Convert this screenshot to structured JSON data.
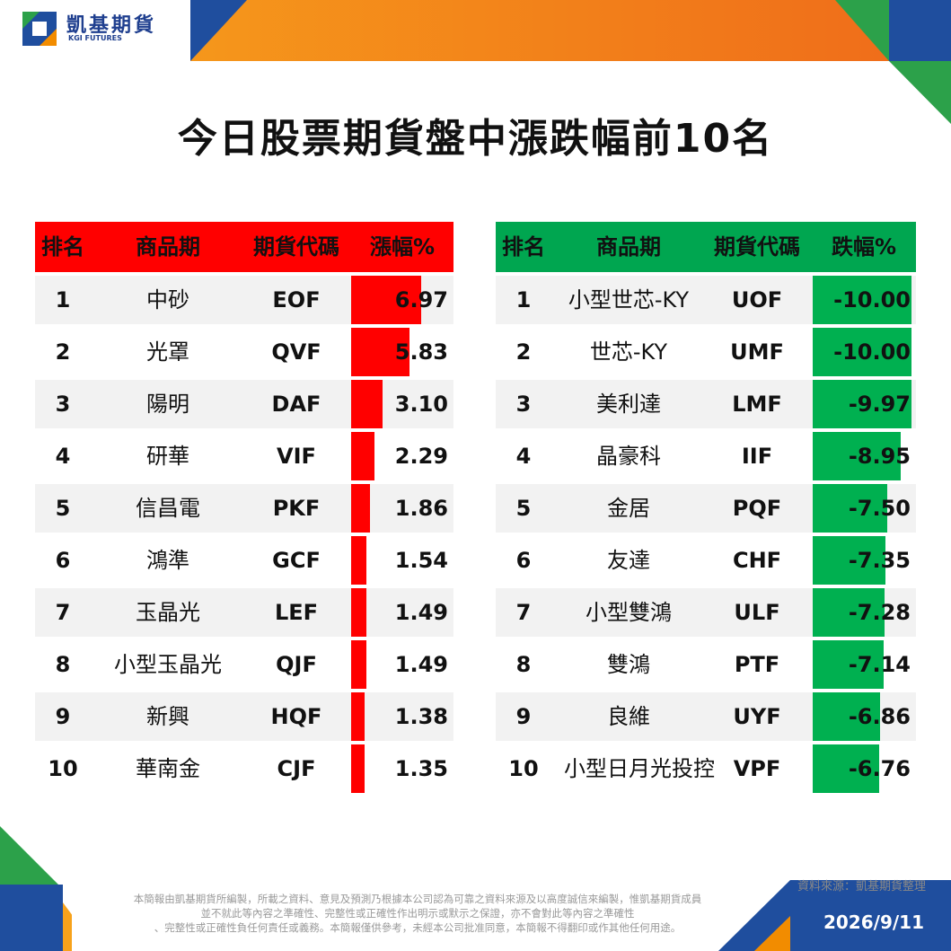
{
  "brand": {
    "name_cn": "凱基期貨",
    "name_en": "KGI FUTURES"
  },
  "title": "今日股票期貨盤中漲跌幅前10名",
  "colors": {
    "gain": "#ff0000",
    "loss": "#00b050",
    "brand_blue": "#1f3f8f",
    "brand_orange": "#f28c00"
  },
  "gainers": {
    "headers": [
      "排名",
      "商品期",
      "期貨代碼",
      "漲幅%"
    ],
    "rows": [
      {
        "rank": "1",
        "name": "中砂",
        "code": "EOF",
        "value": "6.97"
      },
      {
        "rank": "2",
        "name": "光罩",
        "code": "QVF",
        "value": "5.83"
      },
      {
        "rank": "3",
        "name": "陽明",
        "code": "DAF",
        "value": "3.10"
      },
      {
        "rank": "4",
        "name": "研華",
        "code": "VIF",
        "value": "2.29"
      },
      {
        "rank": "5",
        "name": "信昌電",
        "code": "PKF",
        "value": "1.86"
      },
      {
        "rank": "6",
        "name": "鴻準",
        "code": "GCF",
        "value": "1.54"
      },
      {
        "rank": "7",
        "name": "玉晶光",
        "code": "LEF",
        "value": "1.49"
      },
      {
        "rank": "8",
        "name": "小型玉晶光",
        "code": "QJF",
        "value": "1.49"
      },
      {
        "rank": "9",
        "name": "新興",
        "code": "HQF",
        "value": "1.38"
      },
      {
        "rank": "10",
        "name": "華南金",
        "code": "CJF",
        "value": "1.35"
      }
    ]
  },
  "losers": {
    "headers": [
      "排名",
      "商品期",
      "期貨代碼",
      "跌幅%"
    ],
    "rows": [
      {
        "rank": "1",
        "name": "小型世芯-KY",
        "code": "UOF",
        "value": "-10.00"
      },
      {
        "rank": "2",
        "name": "世芯-KY",
        "code": "UMF",
        "value": "-10.00"
      },
      {
        "rank": "3",
        "name": "美利達",
        "code": "LMF",
        "value": "-9.97"
      },
      {
        "rank": "4",
        "name": "晶豪科",
        "code": "IIF",
        "value": "-8.95"
      },
      {
        "rank": "5",
        "name": "金居",
        "code": "PQF",
        "value": "-7.50"
      },
      {
        "rank": "6",
        "name": "友達",
        "code": "CHF",
        "value": "-7.35"
      },
      {
        "rank": "7",
        "name": "小型雙鴻",
        "code": "ULF",
        "value": "-7.28"
      },
      {
        "rank": "8",
        "name": "雙鴻",
        "code": "PTF",
        "value": "-7.14"
      },
      {
        "rank": "9",
        "name": "良維",
        "code": "UYF",
        "value": "-6.86"
      },
      {
        "rank": "10",
        "name": "小型日月光投控",
        "code": "VPF",
        "value": "-6.76"
      }
    ]
  },
  "footer": {
    "source": "資料來源：凱基期貨整理",
    "disclaimer": [
      "本簡報由凱基期貨所編製，所載之資料、意見及預測乃根據本公司認為可靠之資料來源及以高度誠信來編製，惟凱基期貨成員",
      "並不就此等內容之準確性、完整性或正確性作出明示或默示之保證，亦不會對此等內容之準確性",
      "、完整性或正確性負任何責任或義務。本簡報僅供參考，未經本公司批准同意，本簡報不得翻印或作其他任何用途。"
    ],
    "date": "2026/9/11"
  }
}
